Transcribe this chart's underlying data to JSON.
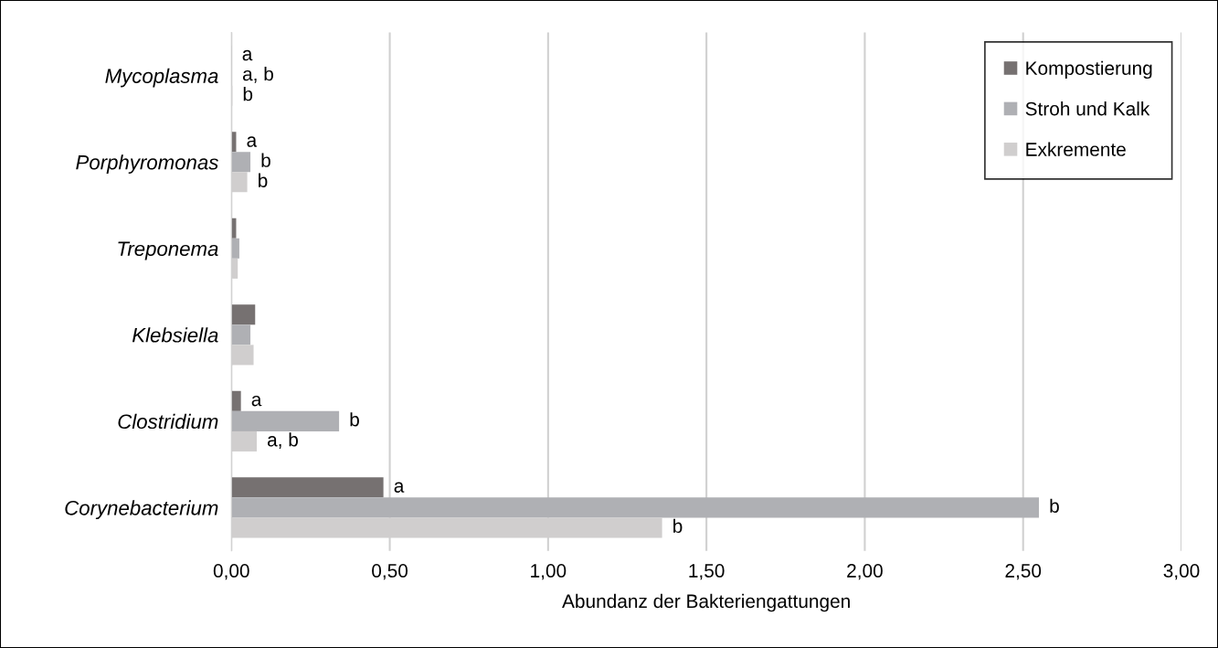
{
  "chart_data": {
    "type": "bar",
    "orientation": "horizontal",
    "xlabel": "Abundanz der Bakteriengattungen",
    "categories": [
      "Mycoplasma",
      "Porphyromonas",
      "Treponema",
      "Klebsiella",
      "Clostridium",
      "Corynebacterium"
    ],
    "series": [
      {
        "name": "Kompostierung",
        "color": "#767171",
        "values": [
          0.001,
          0.015,
          0.015,
          0.075,
          0.03,
          0.48
        ],
        "value_labels": [
          "a",
          "a",
          null,
          null,
          "a",
          "a"
        ]
      },
      {
        "name": "Stroh und Kalk",
        "color": "#afb0b4",
        "values": [
          0.002,
          0.06,
          0.025,
          0.06,
          0.34,
          2.55
        ],
        "value_labels": [
          "a, b",
          "b",
          null,
          null,
          "b",
          "b"
        ]
      },
      {
        "name": "Exkremente",
        "color": "#d0cece",
        "values": [
          0.003,
          0.05,
          0.02,
          0.07,
          0.08,
          1.36
        ],
        "value_labels": [
          "b",
          "b",
          null,
          null,
          "a, b",
          "b"
        ]
      }
    ],
    "xlim": [
      0,
      3
    ],
    "xticks": [
      {
        "value": 0,
        "label": "0,00"
      },
      {
        "value": 0.5,
        "label": "0,50"
      },
      {
        "value": 1,
        "label": "1,00"
      },
      {
        "value": 1.5,
        "label": "1,50"
      },
      {
        "value": 2,
        "label": "2,00"
      },
      {
        "value": 2.5,
        "label": "2,50"
      },
      {
        "value": 3,
        "label": "3,00"
      }
    ],
    "grid": "x",
    "legend": "top right"
  }
}
